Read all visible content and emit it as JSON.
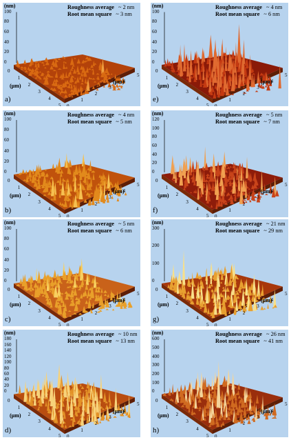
{
  "panels": [
    {
      "id": "a",
      "tag": "a)",
      "z_unit": "(nm)",
      "z_ticks": [
        "100",
        "80",
        "60",
        "40",
        "20",
        "0"
      ],
      "ra_label": "Roughness average",
      "ra_value": "~ 2 nm",
      "rms_label": "Root mean square",
      "rms_value": "~ 3 nm",
      "xy_unit": "(μm)",
      "left_ticks": [
        "0",
        "1",
        "2",
        "3",
        "4",
        "5"
      ],
      "right_ticks": [
        "0",
        "1",
        "2",
        "3",
        "4",
        "5"
      ],
      "peak_scale": 0.2,
      "surface_color": "#b3420a",
      "peak_color": "#d96a12",
      "highlight_color": "#f0a040"
    },
    {
      "id": "b",
      "tag": "b)",
      "z_unit": "(nm)",
      "z_ticks": [
        "100",
        "80",
        "60",
        "40",
        "20",
        "0"
      ],
      "ra_label": "Roughness average",
      "ra_value": "~ 4 nm",
      "rms_label": "Root mean square",
      "rms_value": "~ 5 nm",
      "xy_unit": "(μm)",
      "left_ticks": [
        "0",
        "1",
        "2",
        "3",
        "4",
        "5"
      ],
      "right_ticks": [
        "0",
        "1",
        "2",
        "3",
        "4",
        "5"
      ],
      "peak_scale": 0.45,
      "surface_color": "#c0520c",
      "peak_color": "#e28a1c",
      "highlight_color": "#f6c050"
    },
    {
      "id": "c",
      "tag": "c)",
      "z_unit": "(nm)",
      "z_ticks": [
        "100",
        "80",
        "60",
        "40",
        "20",
        "0"
      ],
      "ra_label": "Roughness average",
      "ra_value": "~ 5 nm",
      "rms_label": "Root mean square",
      "rms_value": "~ 6 nm",
      "xy_unit": "(μm)",
      "left_ticks": [
        "0",
        "1",
        "2",
        "3",
        "4",
        "5"
      ],
      "right_ticks": [
        "0",
        "1",
        "2",
        "3",
        "4",
        "5"
      ],
      "peak_scale": 0.4,
      "surface_color": "#c9621a",
      "peak_color": "#e9a02a",
      "highlight_color": "#f8d060"
    },
    {
      "id": "d",
      "tag": "d)",
      "z_unit": "(nm)",
      "z_ticks": [
        "180",
        "160",
        "140",
        "120",
        "100",
        "80",
        "60",
        "40",
        "20",
        "0"
      ],
      "ra_label": "Roughness average",
      "ra_value": "~ 10 nm",
      "rms_label": "Root mean square",
      "rms_value": "~ 13 nm",
      "xy_unit": "(μm)",
      "left_ticks": [
        "0",
        "1",
        "2",
        "3",
        "4",
        "5"
      ],
      "right_ticks": [
        "0",
        "1",
        "2",
        "3",
        "4",
        "5"
      ],
      "peak_scale": 0.75,
      "surface_color": "#b94d10",
      "peak_color": "#e39228",
      "highlight_color": "#f7d27a"
    },
    {
      "id": "e",
      "tag": "e)",
      "z_unit": "(nm)",
      "z_ticks": [
        "100",
        "80",
        "60",
        "40",
        "20",
        "0"
      ],
      "ra_label": "Roughness  average",
      "ra_value": "~ 4 nm",
      "rms_label": "Root mean square",
      "rms_value": "~ 6 nm",
      "xy_unit": "(μm)",
      "left_ticks": [
        "0",
        "1",
        "2",
        "3",
        "4",
        "5"
      ],
      "right_ticks": [
        "0",
        "1",
        "2",
        "3",
        "4",
        "5"
      ],
      "peak_scale": 0.85,
      "surface_color": "#8a1a08",
      "peak_color": "#c43a12",
      "highlight_color": "#e06a30"
    },
    {
      "id": "f",
      "tag": "f)",
      "z_unit": "(nm)",
      "z_ticks": [
        "120",
        "100",
        "80",
        "60",
        "40",
        "20",
        "0"
      ],
      "ra_label": "Roughness average",
      "ra_value": "~ 5 nm",
      "rms_label": "Root mean square",
      "rms_value": "~ 7 nm",
      "xy_unit": "(μm)",
      "left_ticks": [
        "0",
        "1",
        "2",
        "3",
        "4",
        "5"
      ],
      "right_ticks": [
        "0",
        "1",
        "2",
        "3",
        "4",
        "5"
      ],
      "peak_scale": 0.7,
      "surface_color": "#8e1c0a",
      "peak_color": "#c8441a",
      "highlight_color": "#f0a050"
    },
    {
      "id": "g",
      "tag": "g)",
      "z_unit": "(nm)",
      "z_ticks": [
        "300",
        "200",
        "100",
        "0"
      ],
      "ra_label": "Roughness average",
      "ra_value": "~ 21 nm",
      "rms_label": "Root mean square",
      "rms_value": "~ 29 nm",
      "xy_unit": "(μm)",
      "left_ticks": [
        "0",
        "1",
        "2",
        "3",
        "4",
        "5"
      ],
      "right_ticks": [
        "0",
        "1",
        "2",
        "3",
        "4",
        "5"
      ],
      "peak_scale": 0.6,
      "surface_color": "#a8380c",
      "peak_color": "#e8a030",
      "highlight_color": "#f8e08a"
    },
    {
      "id": "h",
      "tag": "h)",
      "z_unit": "(nm)",
      "z_ticks": [
        "600",
        "500",
        "400",
        "300",
        "200",
        "100",
        "0"
      ],
      "ra_label": "Roughness average",
      "ra_value": "~ 26 nm",
      "rms_label": "Root mean square",
      "rms_value": "~ 41 nm",
      "xy_unit": "(μm)",
      "left_ticks": [
        "0",
        "1",
        "2",
        "3",
        "4",
        "5"
      ],
      "right_ticks": [
        "0",
        "1",
        "2",
        "3",
        "4",
        "5"
      ],
      "peak_scale": 0.55,
      "surface_color": "#9a2e0c",
      "peak_color": "#d06a20",
      "highlight_color": "#f4d49a"
    }
  ]
}
